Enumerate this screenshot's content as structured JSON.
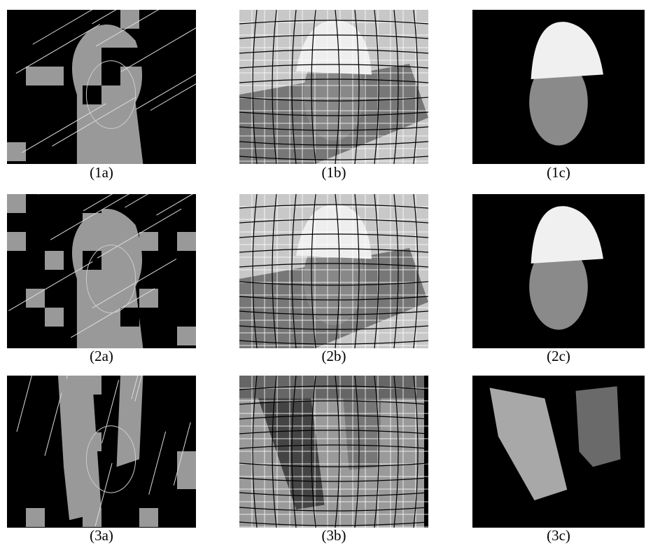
{
  "figure": {
    "panels": [
      {
        "caption": "(1a)"
      },
      {
        "caption": "(1b)"
      },
      {
        "caption": "(1c)"
      },
      {
        "caption": "(2a)"
      },
      {
        "caption": "(2b)"
      },
      {
        "caption": "(2c)"
      },
      {
        "caption": "(3a)"
      },
      {
        "caption": "(3b)"
      },
      {
        "caption": "(3c)"
      }
    ]
  }
}
